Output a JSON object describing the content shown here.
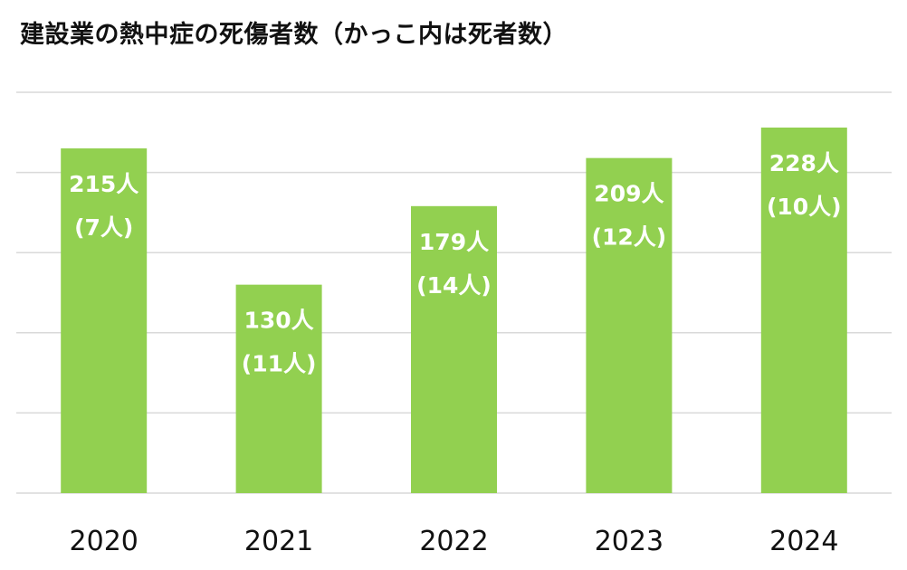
{
  "chart_data": {
    "type": "bar",
    "title": "建設業の熱中症の死傷者数（かっこ内は死者数）",
    "categories": [
      "2020",
      "2021",
      "2022",
      "2023",
      "2024"
    ],
    "series": [
      {
        "values": [
          215,
          130,
          179,
          209,
          228
        ]
      },
      {
        "values": [
          7,
          11,
          14,
          12,
          10
        ]
      }
    ],
    "labels": [
      [
        "215人",
        "(7人)"
      ],
      [
        "130人",
        "(11人)"
      ],
      [
        "179人",
        "(14人)"
      ],
      [
        "209人",
        "(12人)"
      ],
      [
        "228人",
        "(10人)"
      ]
    ],
    "ylim": [
      0,
      250
    ],
    "y_ticks": [
      0,
      50,
      100,
      150,
      200,
      250
    ],
    "y_tick_labels_shown": false,
    "grid": true,
    "legend": "none",
    "colors": {
      "bar": "#92d050",
      "label": "#ffffff",
      "grid": "#d9d9d9",
      "text": "#111111"
    }
  }
}
